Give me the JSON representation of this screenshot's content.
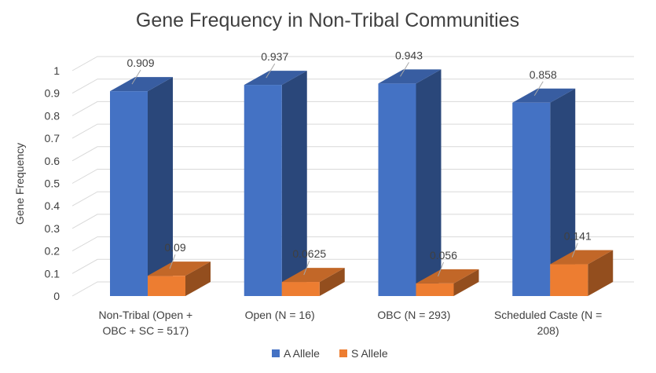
{
  "chart_data": {
    "type": "bar",
    "title": "Gene Frequency in Non-Tribal Communities",
    "ylabel": "Gene Frequency",
    "xlabel": "",
    "ylim": [
      0,
      1
    ],
    "yticks": [
      "0",
      "0.1",
      "0.2",
      "0.3",
      "0.4",
      "0.5",
      "0.6",
      "0.7",
      "0.8",
      "0.9",
      "1"
    ],
    "grid": true,
    "legend_position": "bottom",
    "categories": [
      [
        "Non-Tribal (Open +",
        "OBC + SC = 517)"
      ],
      [
        "Open (N = 16)"
      ],
      [
        "OBC (N = 293)"
      ],
      [
        "Scheduled Caste (N =",
        "208)"
      ]
    ],
    "series": [
      {
        "name": "A Allele",
        "color": "#4472C4",
        "values": [
          0.909,
          0.937,
          0.943,
          0.858
        ],
        "labels": [
          "0.909",
          "0.937",
          "0.943",
          "0.858"
        ]
      },
      {
        "name": "S Allele",
        "color": "#ED7D31",
        "values": [
          0.09,
          0.0625,
          0.056,
          0.141
        ],
        "labels": [
          "0.09",
          "0.0625",
          "0.056",
          "0.141"
        ]
      }
    ]
  }
}
